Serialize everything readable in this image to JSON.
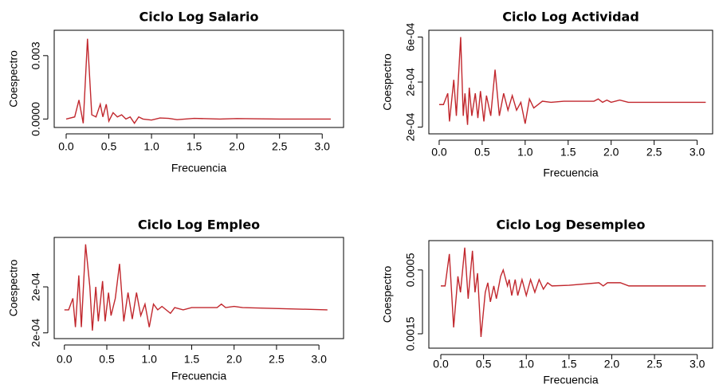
{
  "chart_data": [
    {
      "type": "line",
      "title": "Ciclo Log Salario",
      "xlabel": "Frecuencia",
      "ylabel": "Coespectro",
      "x": [
        0,
        0.1,
        0.15,
        0.2,
        0.25,
        0.3,
        0.35,
        0.4,
        0.43,
        0.47,
        0.5,
        0.55,
        0.6,
        0.65,
        0.7,
        0.75,
        0.8,
        0.85,
        0.9,
        1.0,
        1.1,
        1.2,
        1.3,
        1.5,
        1.8,
        2.0,
        2.5,
        3.1
      ],
      "series": [
        {
          "color": "#c1272d",
          "values": [
            0,
            0.0001,
            0.0009,
            -0.0002,
            0.0038,
            0.0002,
            0.0001,
            0.0007,
            0.0001,
            0.0007,
            -0.0001,
            0.0003,
            0.0001,
            0.0002,
            0,
            0.0001,
            -0.0002,
            0.0001,
            0,
            -5e-05,
            5e-05,
            3e-05,
            -3e-05,
            3e-05,
            0,
            2e-05,
            0,
            0
          ]
        }
      ],
      "xlim": [
        -0.14,
        3.25
      ],
      "ylim": [
        -0.0004,
        0.0042
      ],
      "xticks": [
        {
          "value": 0,
          "label": "0.0"
        },
        0.5,
        {
          "value": 1,
          "label": "1.0"
        },
        1.5,
        {
          "value": 2,
          "label": "2.0"
        },
        2.5,
        {
          "value": 3,
          "label": "3.0"
        }
      ],
      "yticks": [
        {
          "value": 0,
          "label": "0.0000"
        },
        {
          "value": 0.003,
          "label": "0.003"
        }
      ]
    },
    {
      "type": "line",
      "title": "Ciclo Log Actividad",
      "xlabel": "Frecuencia",
      "ylabel": "Coespectro",
      "x": [
        0,
        0.05,
        0.1,
        0.12,
        0.17,
        0.2,
        0.25,
        0.28,
        0.3,
        0.33,
        0.35,
        0.38,
        0.42,
        0.45,
        0.48,
        0.52,
        0.55,
        0.6,
        0.65,
        0.7,
        0.75,
        0.8,
        0.85,
        0.9,
        0.95,
        1.0,
        1.05,
        1.1,
        1.2,
        1.3,
        1.45,
        1.8,
        1.85,
        1.9,
        1.95,
        2.0,
        2.1,
        2.2,
        3.1
      ],
      "series": [
        {
          "color": "#c1272d",
          "values": [
            0,
            0,
            0.0001,
            -0.00015,
            0.00022,
            -0.0001,
            0.0006,
            -0.0001,
            0.0001,
            -0.00018,
            0.00015,
            -0.0001,
            0.0001,
            -0.00012,
            0.00012,
            -0.00015,
            8e-05,
            -0.0001,
            0.00031,
            -0.0001,
            0.0001,
            -5e-05,
            8e-05,
            -5e-05,
            2e-05,
            -0.00017,
            5e-05,
            -3e-05,
            3e-05,
            2e-05,
            3e-05,
            3e-05,
            5e-05,
            2e-05,
            4e-05,
            2e-05,
            4e-05,
            2e-05,
            2e-05
          ]
        }
      ],
      "xlim": [
        -0.12,
        3.18
      ],
      "ylim": [
        -0.00026,
        0.00066
      ],
      "xticks": [
        {
          "value": 0,
          "label": "0.0"
        },
        0.5,
        {
          "value": 1,
          "label": "1.0"
        },
        1.5,
        {
          "value": 2,
          "label": "2.0"
        },
        2.5,
        {
          "value": 3,
          "label": "3.0"
        }
      ],
      "yticks": [
        {
          "value": -0.0002,
          "label": "2e-04"
        },
        {
          "value": 0.0002,
          "label": "2e-04"
        },
        {
          "value": 0.0006,
          "label": "6e-04"
        }
      ]
    },
    {
      "type": "line",
      "title": "Ciclo Log Empleo",
      "xlabel": "Frecuencia",
      "ylabel": "Coespectro",
      "x": [
        0,
        0.05,
        0.1,
        0.13,
        0.17,
        0.2,
        0.25,
        0.3,
        0.33,
        0.37,
        0.4,
        0.45,
        0.48,
        0.52,
        0.55,
        0.6,
        0.65,
        0.7,
        0.75,
        0.8,
        0.85,
        0.9,
        0.95,
        1.0,
        1.05,
        1.1,
        1.15,
        1.25,
        1.3,
        1.4,
        1.5,
        1.8,
        1.85,
        1.9,
        2.0,
        2.1,
        3.1
      ],
      "series": [
        {
          "color": "#c1272d",
          "values": [
            0,
            0,
            0.0001,
            -0.00015,
            0.0003,
            -0.00015,
            0.00057,
            0.0002,
            -0.00018,
            0.0002,
            -0.0001,
            0.00025,
            -0.0001,
            0.00015,
            -5e-05,
            0.0001,
            0.0004,
            -0.0001,
            0.00015,
            -8e-05,
            0.00015,
            -5e-05,
            5e-05,
            -0.00015,
            5e-05,
            0,
            3e-05,
            -3e-05,
            2e-05,
            0,
            2e-05,
            2e-05,
            5e-05,
            2e-05,
            3e-05,
            2e-05,
            0
          ]
        }
      ],
      "xlim": [
        -0.12,
        3.29
      ],
      "ylim": [
        -0.00025,
        0.00063
      ],
      "xticks": [
        {
          "value": 0,
          "label": "0.0"
        },
        0.5,
        {
          "value": 1,
          "label": "1.0"
        },
        1.5,
        {
          "value": 2,
          "label": "2.0"
        },
        2.5,
        {
          "value": 3,
          "label": "3.0"
        }
      ],
      "yticks": [
        {
          "value": -0.0002,
          "label": "2e-04"
        },
        {
          "value": 0.0002,
          "label": "2e-04"
        }
      ]
    },
    {
      "type": "line",
      "title": "Ciclo Log Desempleo",
      "xlabel": "Frecuencia",
      "ylabel": "Coespectro",
      "x": [
        0,
        0.05,
        0.1,
        0.15,
        0.2,
        0.23,
        0.28,
        0.32,
        0.37,
        0.4,
        0.43,
        0.47,
        0.52,
        0.55,
        0.58,
        0.62,
        0.65,
        0.7,
        0.73,
        0.78,
        0.8,
        0.83,
        0.87,
        0.9,
        0.95,
        1.0,
        1.05,
        1.1,
        1.15,
        1.2,
        1.25,
        1.3,
        1.5,
        1.85,
        1.9,
        1.95,
        2.1,
        2.2,
        3.1
      ],
      "series": [
        {
          "color": "#c1272d",
          "values": [
            0,
            0,
            0.001,
            -0.0013,
            0.0003,
            -0.0002,
            0.0012,
            -0.0004,
            0.0011,
            -0.0002,
            0.0004,
            -0.0016,
            -0.0002,
            0.0001,
            -0.0005,
            0,
            -0.0004,
            0.0003,
            0.0005,
            0,
            0.0002,
            -0.0003,
            0.0002,
            -0.0003,
            0.0002,
            -0.0003,
            0.0002,
            -0.0002,
            0.0002,
            -0.0001,
            0.0001,
            0,
            2e-05,
            0.0001,
            0,
            0.0001,
            0.0001,
            0,
            0
          ]
        }
      ],
      "xlim": [
        -0.14,
        3.18
      ],
      "ylim": [
        -0.00195,
        0.00142
      ],
      "xticks": [
        {
          "value": 0,
          "label": "0.0"
        },
        0.5,
        {
          "value": 1,
          "label": "1.0"
        },
        1.5,
        {
          "value": 2,
          "label": "2.0"
        },
        2.5,
        {
          "value": 3,
          "label": "3.0"
        }
      ],
      "yticks": [
        {
          "value": -0.0015,
          "label": "0.0015"
        },
        {
          "value": 0.0005,
          "label": "0.0005"
        }
      ]
    }
  ]
}
